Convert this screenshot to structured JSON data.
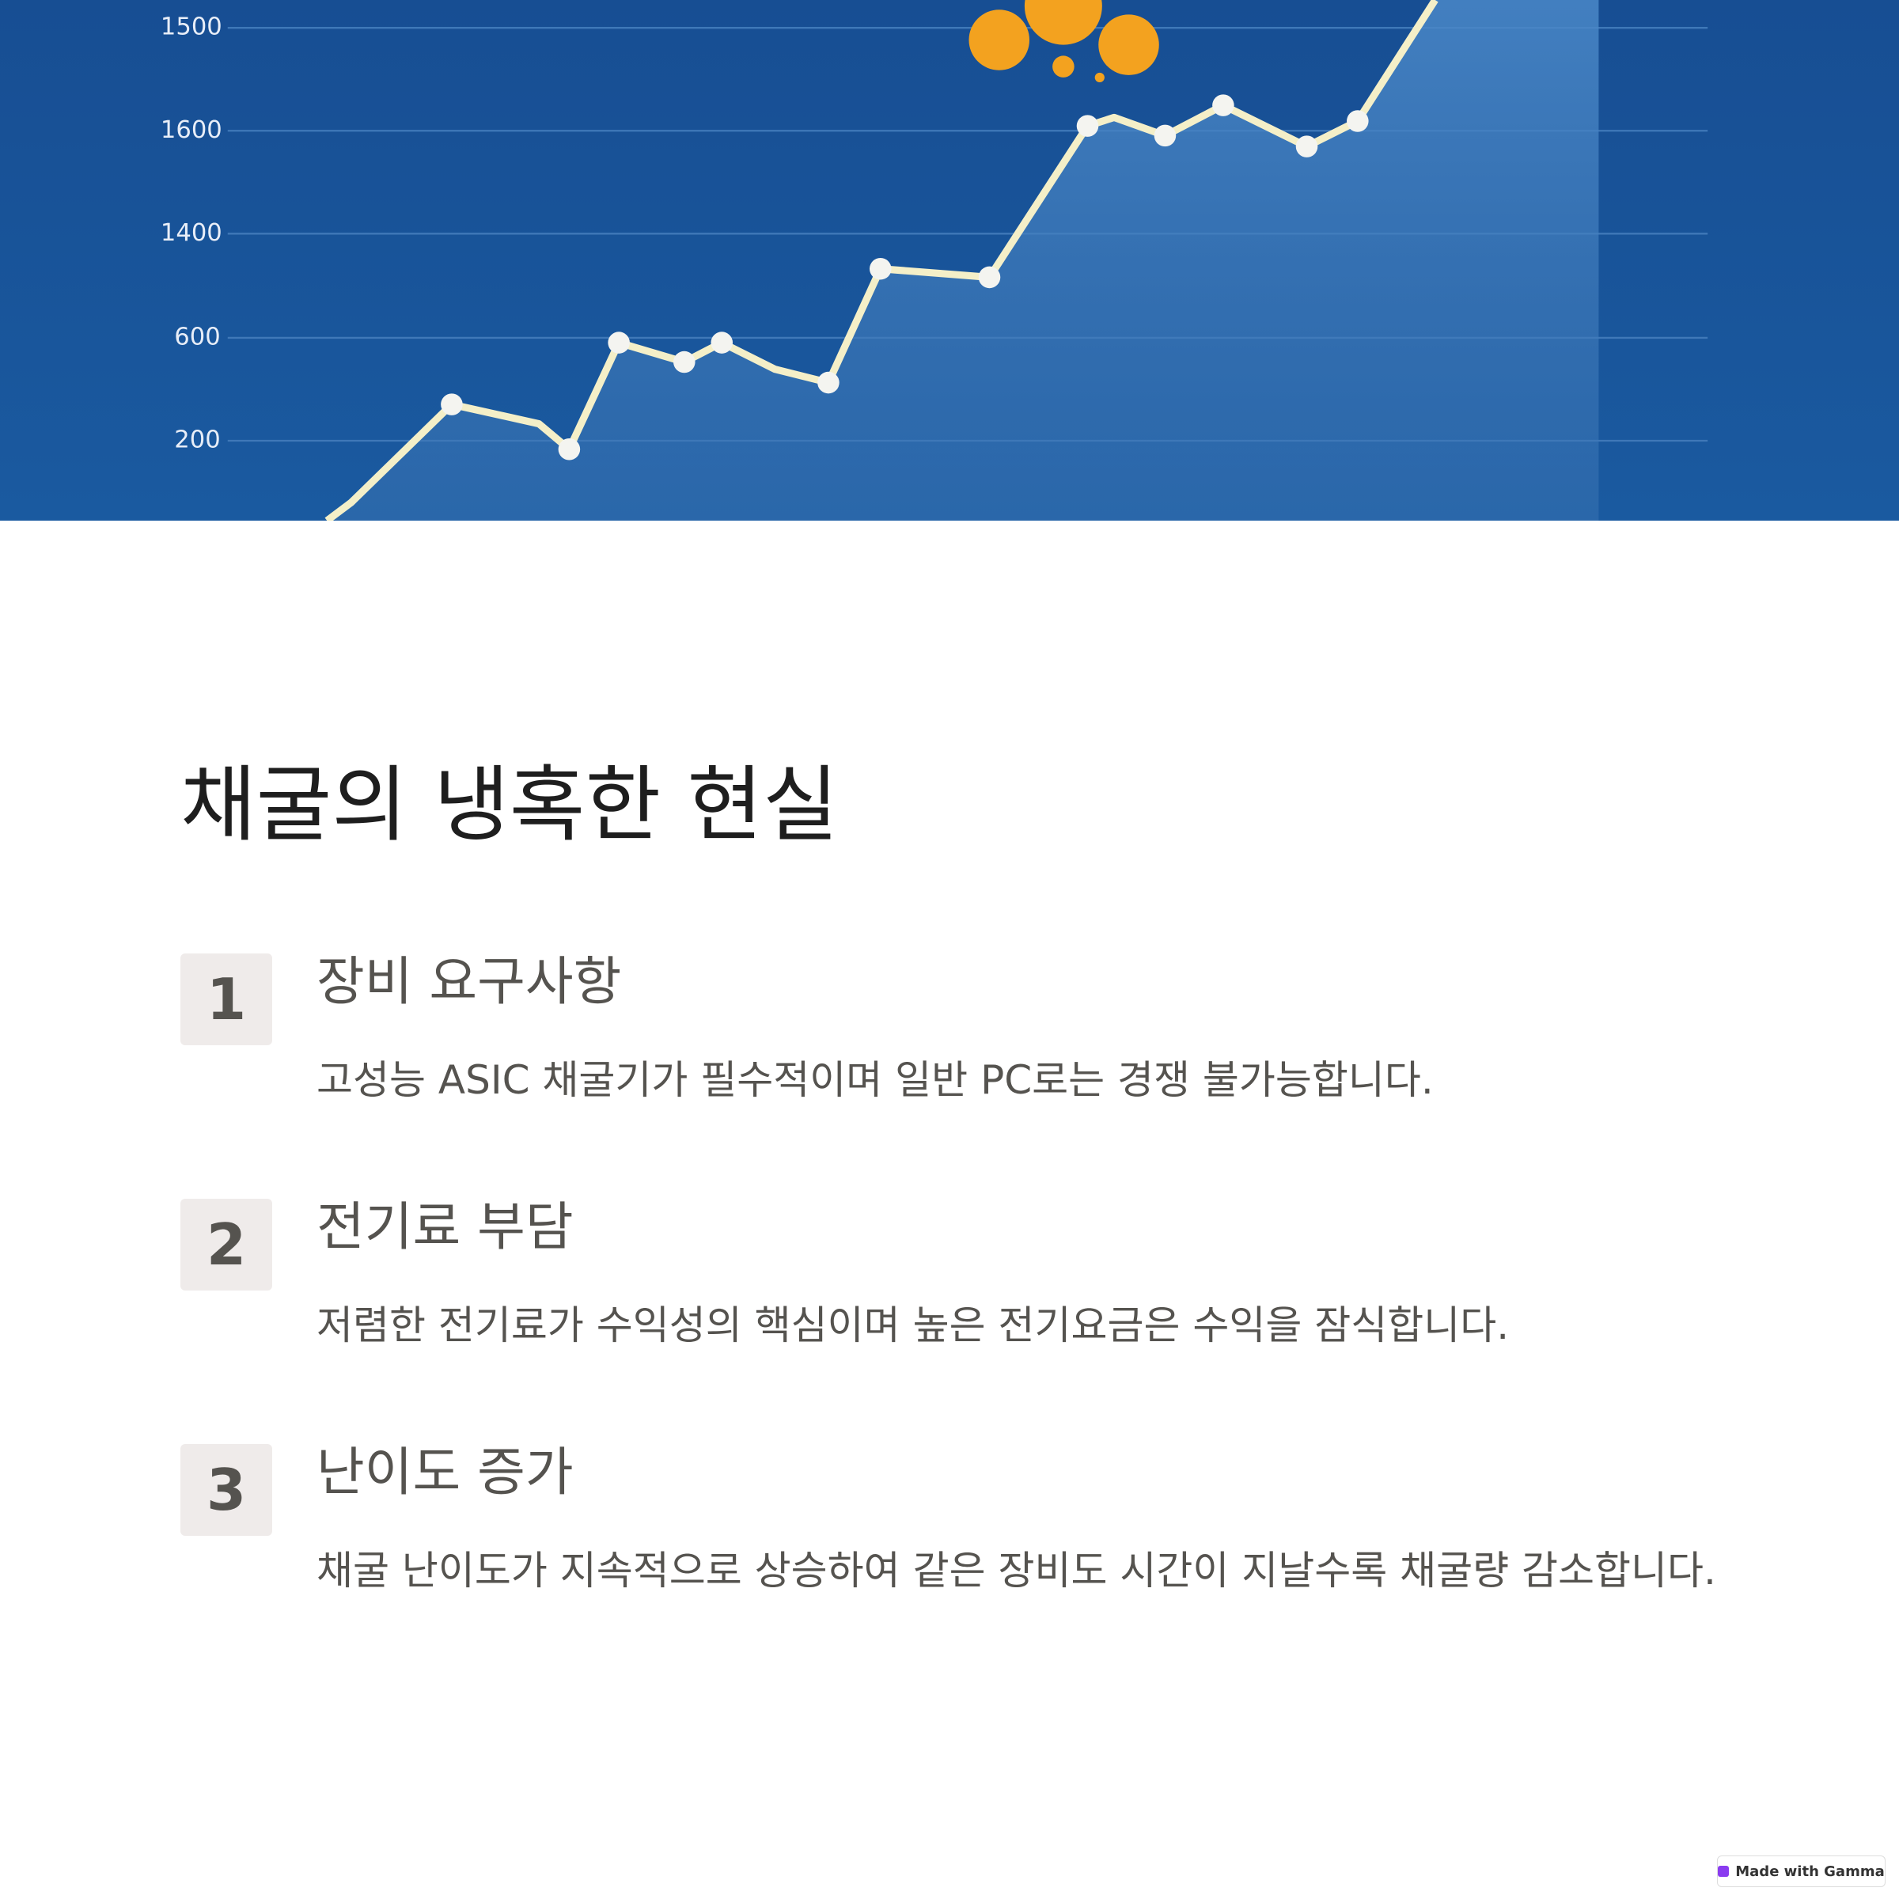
{
  "hero_image": {
    "axis_labels": [
      "1500",
      "1600",
      "1400",
      "600",
      "200"
    ]
  },
  "title": "채굴의 냉혹한 현실",
  "items": [
    {
      "number": "1",
      "heading": "장비 요구사항",
      "text": "고성능 ASIC 채굴기가 필수적이며 일반 PC로는 경쟁 불가능합니다."
    },
    {
      "number": "2",
      "heading": "전기료 부담",
      "text": "저렴한 전기료가 수익성의 핵심이며 높은 전기요금은 수익을 잠식합니다."
    },
    {
      "number": "3",
      "heading": "난이도 증가",
      "text": "채굴 난이도가 지속적으로 상승하여 같은 장비도 시간이 지날수록 채굴량 감소합니다."
    }
  ],
  "badge": "Made with Gamma"
}
